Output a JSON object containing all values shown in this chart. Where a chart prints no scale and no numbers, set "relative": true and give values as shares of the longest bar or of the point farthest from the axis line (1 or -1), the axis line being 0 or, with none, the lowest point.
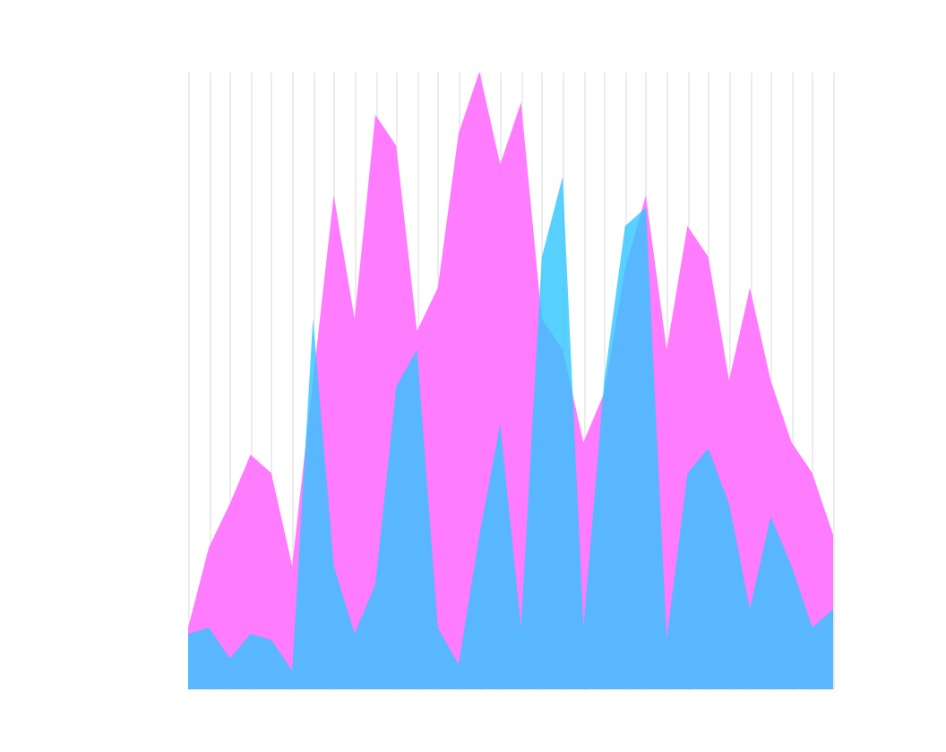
{
  "chart_data": {
    "type": "area",
    "relative": true,
    "grid": "x",
    "tick_labels": false,
    "categories": [
      null,
      null,
      null,
      null,
      null,
      null,
      null,
      null,
      null,
      null,
      null,
      null,
      null,
      null,
      null,
      null,
      null,
      null,
      null,
      null,
      null,
      null,
      null,
      null,
      null,
      null,
      null,
      null,
      null,
      null,
      null,
      null
    ],
    "series": [
      {
        "color": "#ff7cff",
        "values": [
          0.1,
          0.23,
          0.3,
          0.38,
          0.35,
          0.2,
          0.5,
          0.8,
          0.6,
          0.93,
          0.88,
          0.58,
          0.65,
          0.9,
          1,
          0.85,
          0.95,
          0.6,
          0.55,
          0.4,
          0.48,
          0.68,
          0.8,
          0.55,
          0.75,
          0.7,
          0.5,
          0.65,
          0.5,
          0.4,
          0.35,
          0.25
        ]
      },
      {
        "color": "#2ec6ff",
        "values": [
          0.09,
          0.1,
          0.05,
          0.09,
          0.08,
          0.03,
          0.6,
          0.2,
          0.09,
          0.17,
          0.49,
          0.55,
          0.1,
          0.04,
          0.25,
          0.43,
          0.1,
          0.7,
          0.83,
          0.1,
          0.5,
          0.75,
          0.78,
          0.08,
          0.35,
          0.39,
          0.3,
          0.13,
          0.28,
          0.2,
          0.1,
          0.13
        ]
      }
    ]
  }
}
